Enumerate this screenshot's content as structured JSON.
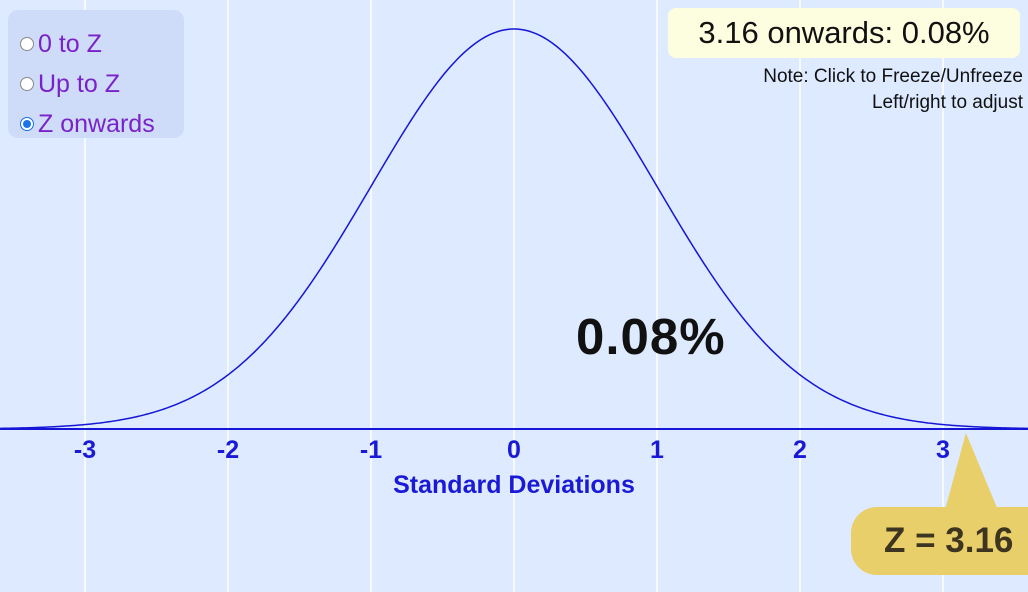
{
  "modes": {
    "options": [
      {
        "label": "0 to Z",
        "selected": false
      },
      {
        "label": "Up to Z",
        "selected": false
      },
      {
        "label": "Z onwards",
        "selected": true
      }
    ]
  },
  "result": {
    "text": "3.16 onwards: 0.08%"
  },
  "note": {
    "line1": "Note: Click to Freeze/Unfreeze",
    "line2": "Left/right to adjust"
  },
  "area_label": "0.08%",
  "z_badge": "Z = 3.16",
  "colors": {
    "background": "#ddeaff",
    "curve": "#1616d6",
    "axis_text": "#1a1ad6",
    "badge": "#e9cf6a",
    "mode_text": "#7a22c9"
  },
  "chart_data": {
    "type": "line",
    "title": "",
    "xlabel": "Standard Deviations",
    "ylabel": "",
    "xlim": [
      -3.6,
      3.6
    ],
    "ylim": [
      0,
      0.3989
    ],
    "x_ticks": [
      "-3",
      "-2",
      "-1",
      "0",
      "1",
      "2",
      "3"
    ],
    "grid": true,
    "series": [
      {
        "distribution": "standard normal",
        "mean": 0,
        "sd": 1
      }
    ],
    "z_value": 3.16,
    "shaded_region": "Z onwards"
  }
}
